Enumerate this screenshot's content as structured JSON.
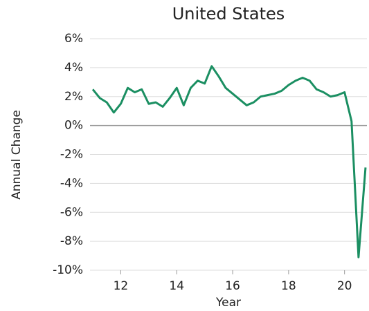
{
  "chart_data": {
    "type": "line",
    "title": "United States",
    "x_label": "Year",
    "y_label": "Annual Change",
    "x": [
      11.0,
      11.25,
      11.5,
      11.75,
      12.0,
      12.25,
      12.5,
      12.75,
      13.0,
      13.25,
      13.5,
      13.75,
      14.0,
      14.25,
      14.5,
      14.75,
      15.0,
      15.25,
      15.5,
      15.75,
      16.0,
      16.25,
      16.5,
      16.75,
      17.0,
      17.25,
      17.5,
      17.75,
      18.0,
      18.25,
      18.5,
      18.75,
      19.0,
      19.25,
      19.5,
      19.75,
      20.0,
      20.25,
      20.5,
      20.75
    ],
    "series": [
      {
        "name": "United States",
        "color": "#1b8f62",
        "values": [
          2.5,
          1.9,
          1.6,
          0.9,
          1.5,
          2.6,
          2.3,
          2.5,
          1.5,
          1.6,
          1.3,
          1.9,
          2.6,
          1.4,
          2.6,
          3.1,
          2.9,
          4.1,
          3.4,
          2.6,
          2.2,
          1.8,
          1.4,
          1.6,
          2.0,
          2.1,
          2.2,
          2.4,
          2.8,
          3.1,
          3.3,
          3.1,
          2.5,
          2.3,
          2.0,
          2.1,
          2.3,
          0.3,
          -9.1,
          -2.9
        ]
      }
    ],
    "xlim": [
      10.9,
      20.8
    ],
    "xticks": [
      12,
      14,
      16,
      18,
      20
    ],
    "ylim": [
      -10,
      6
    ],
    "yticks": [
      {
        "value": -10,
        "label": "-10%"
      },
      {
        "value": -8,
        "label": "-8%"
      },
      {
        "value": -6,
        "label": "-6%"
      },
      {
        "value": -4,
        "label": "-4%"
      },
      {
        "value": -2,
        "label": "-2%"
      },
      {
        "value": 0,
        "label": "0%"
      },
      {
        "value": 2,
        "label": "2%"
      },
      {
        "value": 4,
        "label": "4%"
      },
      {
        "value": 6,
        "label": "6%"
      }
    ],
    "grid": true
  }
}
